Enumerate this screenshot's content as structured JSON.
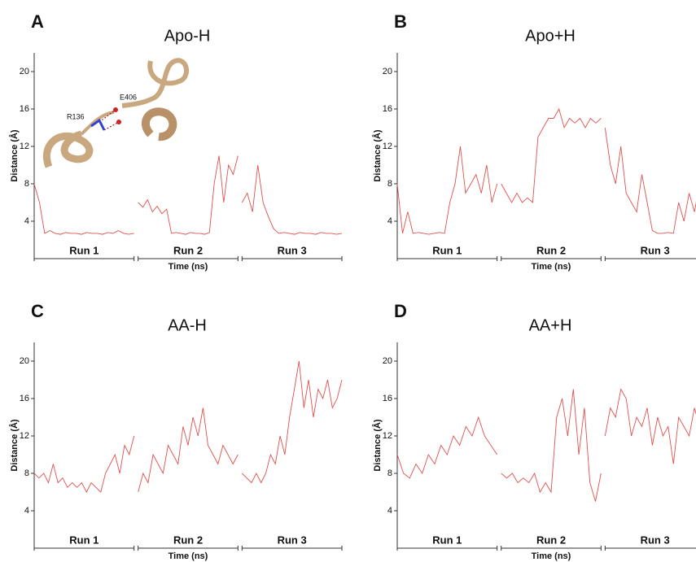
{
  "chart_data": [
    {
      "type": "line",
      "panel": "A",
      "title": "Apo-H",
      "ylabel": "Distance (Å)",
      "xlabel": "Time (ns)",
      "ylim": [
        0,
        22
      ],
      "yticks": [
        4,
        8,
        12,
        16,
        20
      ],
      "annotations": [
        "R136",
        "E406"
      ],
      "series": [
        {
          "name": "Run 1",
          "color": "#e05050",
          "values": [
            8,
            6,
            2.7,
            3,
            2.7,
            2.6,
            2.8,
            2.7,
            2.7,
            2.6,
            2.8,
            2.7,
            2.7,
            2.6,
            2.8,
            2.7,
            3,
            2.7,
            2.6,
            2.7
          ]
        },
        {
          "name": "Run 2",
          "color": "#e05050",
          "values": [
            6,
            5.5,
            6.3,
            5,
            5.6,
            4.8,
            5.3,
            2.7,
            2.8,
            2.7,
            2.6,
            2.8,
            2.7,
            2.7,
            2.6,
            2.8,
            8,
            11,
            6,
            10,
            9,
            11
          ]
        },
        {
          "name": "Run 3",
          "color": "#e05050",
          "values": [
            6,
            7,
            5,
            10,
            6,
            4.5,
            3.2,
            2.7,
            2.8,
            2.7,
            2.6,
            2.8,
            2.7,
            2.7,
            2.6,
            2.8,
            2.7,
            2.7,
            2.6,
            2.7
          ]
        }
      ]
    },
    {
      "type": "line",
      "panel": "B",
      "title": "Apo+H",
      "ylabel": "Distance (Å)",
      "xlabel": "Time (ns)",
      "ylim": [
        0,
        22
      ],
      "yticks": [
        4,
        8,
        12,
        16,
        20
      ],
      "series": [
        {
          "name": "Run 1",
          "color": "#e05050",
          "values": [
            8,
            2.7,
            5,
            2.7,
            2.8,
            2.7,
            2.6,
            2.7,
            2.8,
            2.7,
            6,
            8,
            12,
            7,
            8,
            9,
            7,
            10,
            6,
            8
          ]
        },
        {
          "name": "Run 2",
          "color": "#e05050",
          "values": [
            8,
            7,
            6,
            7,
            6,
            6.5,
            6,
            13,
            14,
            15,
            15,
            16,
            14,
            15,
            14.5,
            15,
            14,
            15,
            14.5,
            15
          ]
        },
        {
          "name": "Run 3",
          "color": "#e05050",
          "values": [
            14,
            10,
            8,
            12,
            7,
            6,
            5,
            9,
            6,
            3,
            2.7,
            2.7,
            2.8,
            2.7,
            6,
            4,
            7,
            5,
            8,
            6
          ]
        }
      ]
    },
    {
      "type": "line",
      "panel": "C",
      "title": "AA-H",
      "ylabel": "Distance (Å)",
      "xlabel": "Time (ns)",
      "ylim": [
        0,
        22
      ],
      "yticks": [
        4,
        8,
        12,
        16,
        20
      ],
      "series": [
        {
          "name": "Run 1",
          "color": "#e05050",
          "values": [
            8,
            7.5,
            8,
            7,
            9,
            7,
            7.5,
            6.5,
            7,
            6.5,
            7,
            6,
            7,
            6.5,
            6,
            8,
            9,
            10,
            8,
            11,
            10,
            12
          ]
        },
        {
          "name": "Run 2",
          "color": "#e05050",
          "values": [
            6,
            8,
            7,
            10,
            9,
            8,
            11,
            10,
            9,
            13,
            11,
            14,
            12,
            15,
            11,
            10,
            9,
            11,
            10,
            9,
            10
          ]
        },
        {
          "name": "Run 3",
          "color": "#e05050",
          "values": [
            8,
            7.5,
            7,
            8,
            7,
            8,
            10,
            9,
            12,
            10,
            14,
            17,
            20,
            15,
            18,
            14,
            17,
            16,
            18,
            15,
            16,
            18
          ]
        }
      ]
    },
    {
      "type": "line",
      "panel": "D",
      "title": "AA+H",
      "ylabel": "Distance (Å)",
      "xlabel": "Time (ns)",
      "ylim": [
        0,
        22
      ],
      "yticks": [
        4,
        8,
        12,
        16,
        20
      ],
      "series": [
        {
          "name": "Run 1",
          "color": "#e05050",
          "values": [
            10,
            8,
            7.5,
            9,
            8,
            10,
            9,
            11,
            10,
            12,
            11,
            13,
            12,
            14,
            12,
            11,
            10
          ]
        },
        {
          "name": "Run 2",
          "color": "#e05050",
          "values": [
            8,
            7.5,
            8,
            7,
            7.5,
            7,
            8,
            6,
            7,
            6,
            14,
            16,
            12,
            17,
            10,
            15,
            7,
            5,
            8
          ]
        },
        {
          "name": "Run 3",
          "color": "#e05050",
          "values": [
            12,
            15,
            14,
            17,
            16,
            12,
            14,
            13,
            15,
            11,
            14,
            12,
            13,
            9,
            14,
            13,
            12,
            15,
            13,
            12
          ]
        }
      ]
    }
  ]
}
